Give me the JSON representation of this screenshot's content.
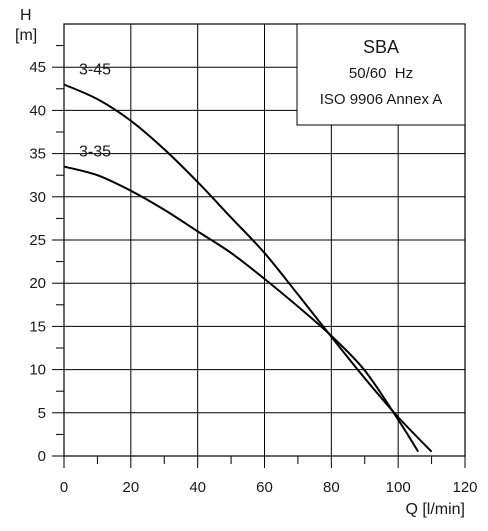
{
  "chart_data": {
    "type": "line",
    "title": "",
    "xlabel": "Q [l/min]",
    "ylabel_line1": "H",
    "ylabel_line2": "[m]",
    "xlim": [
      0,
      120
    ],
    "ylim": [
      0,
      50
    ],
    "x_ticks": [
      0,
      20,
      40,
      60,
      80,
      100,
      120
    ],
    "y_ticks": [
      0,
      5,
      10,
      15,
      20,
      25,
      30,
      35,
      40,
      45
    ],
    "grid": true,
    "info_box": {
      "line1": "SBA",
      "line2": "50/60  Hz",
      "line3": "ISO 9906 Annex A"
    },
    "series": [
      {
        "name": "3-45",
        "x": [
          0,
          10,
          20,
          30,
          40,
          50,
          60,
          70,
          80,
          90,
          100,
          110
        ],
        "y": [
          43,
          41.3,
          38.8,
          35.5,
          31.7,
          27.6,
          23.5,
          18.7,
          13.8,
          9,
          4.5,
          0.5
        ]
      },
      {
        "name": "3-35",
        "x": [
          0,
          10,
          20,
          30,
          40,
          50,
          60,
          70,
          80,
          90,
          100,
          106
        ],
        "y": [
          33.5,
          32.5,
          30.7,
          28.5,
          26,
          23.5,
          20.5,
          17.3,
          13.9,
          9.9,
          4.2,
          0.5
        ]
      }
    ]
  }
}
